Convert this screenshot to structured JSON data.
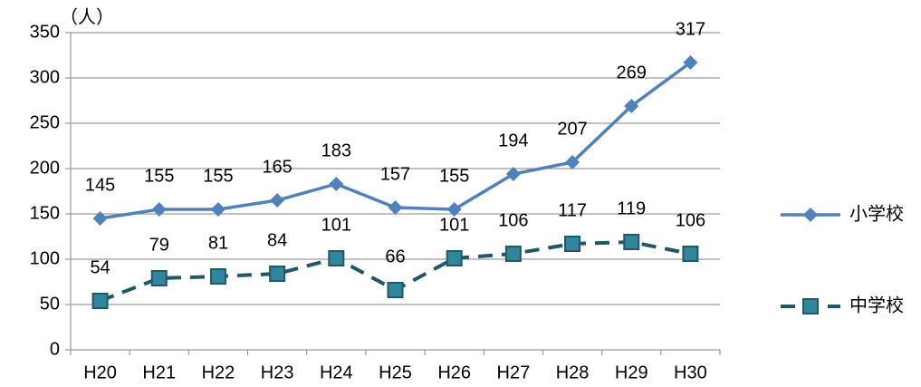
{
  "chart_data": {
    "type": "line",
    "y_axis_label": "（人）",
    "categories": [
      "H20",
      "H21",
      "H22",
      "H23",
      "H24",
      "H25",
      "H26",
      "H27",
      "H28",
      "H29",
      "H30"
    ],
    "series": [
      {
        "name": "小学校",
        "color": "#4f81bd",
        "line_style": "solid",
        "marker": "diamond",
        "values": [
          145,
          155,
          155,
          165,
          183,
          157,
          155,
          194,
          207,
          269,
          317
        ]
      },
      {
        "name": "中学校",
        "color": "#215868",
        "marker_fill": "#31859c",
        "line_style": "dashed",
        "marker": "square",
        "values": [
          54,
          79,
          81,
          84,
          101,
          66,
          101,
          106,
          117,
          119,
          106
        ]
      }
    ],
    "ylim": [
      0,
      350
    ],
    "yticks": [
      0,
      50,
      100,
      150,
      200,
      250,
      300,
      350
    ],
    "grid": true,
    "legend": "right"
  }
}
